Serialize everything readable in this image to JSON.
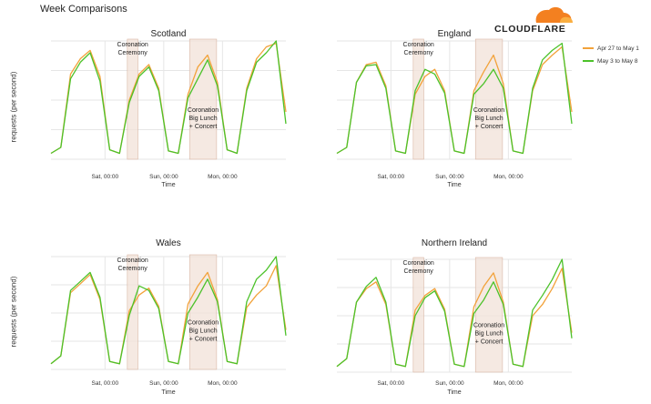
{
  "page": {
    "title": "Week Comparisons",
    "ylabel": "requests (per second)"
  },
  "logo": {
    "text": "CLOUDFLARE"
  },
  "legend": {
    "items": [
      {
        "label": "Apr 27 to May 1",
        "color": "#f2a23a"
      },
      {
        "label": "May 3 to May 8",
        "color": "#4cc22a"
      }
    ]
  },
  "colors": {
    "series1": "#f2a23a",
    "series2": "#4cc22a",
    "band": "#f1e1d8",
    "band_edge": "#d9b7a5",
    "grid": "#e6e6e6"
  },
  "chart_data": [
    {
      "type": "line",
      "title": "Scotland",
      "xlabel": "Time",
      "x_ticks": [
        "Sat, 00:00",
        "Sun, 00:00",
        "Mon, 00:00"
      ],
      "y_range": [
        0,
        1
      ],
      "grid": true,
      "annotations": [
        "Coronation Ceremony",
        "Coronation Big Lunch + Concert"
      ],
      "series": [
        {
          "name": "Apr 27 to May 1",
          "values": [
            0.05,
            0.1,
            0.72,
            0.85,
            0.92,
            0.7,
            0.08,
            0.05,
            0.5,
            0.72,
            0.8,
            0.6,
            0.07,
            0.05,
            0.55,
            0.78,
            0.88,
            0.65,
            0.08,
            0.05,
            0.6,
            0.85,
            0.95,
            0.98,
            0.4
          ]
        },
        {
          "name": "May 3 to May 8",
          "values": [
            0.05,
            0.1,
            0.68,
            0.82,
            0.9,
            0.66,
            0.08,
            0.05,
            0.48,
            0.7,
            0.78,
            0.58,
            0.07,
            0.05,
            0.52,
            0.68,
            0.84,
            0.62,
            0.08,
            0.05,
            0.58,
            0.82,
            0.9,
            1.0,
            0.3
          ]
        }
      ]
    },
    {
      "type": "line",
      "title": "England",
      "xlabel": "Time",
      "x_ticks": [
        "Sat, 00:00",
        "Sun, 00:00",
        "Mon, 00:00"
      ],
      "y_range": [
        0,
        1
      ],
      "grid": true,
      "annotations": [
        "Coronation Ceremony",
        "Coronation Big Lunch + Concert"
      ],
      "series": [
        {
          "name": "Apr 27 to May 1",
          "values": [
            0.05,
            0.1,
            0.65,
            0.8,
            0.82,
            0.62,
            0.07,
            0.05,
            0.55,
            0.7,
            0.76,
            0.58,
            0.07,
            0.05,
            0.58,
            0.74,
            0.88,
            0.64,
            0.07,
            0.05,
            0.58,
            0.8,
            0.88,
            0.95,
            0.4
          ]
        },
        {
          "name": "May 3 to May 8",
          "values": [
            0.05,
            0.1,
            0.65,
            0.79,
            0.8,
            0.6,
            0.07,
            0.05,
            0.58,
            0.76,
            0.72,
            0.56,
            0.07,
            0.05,
            0.55,
            0.64,
            0.76,
            0.6,
            0.07,
            0.05,
            0.6,
            0.84,
            0.92,
            0.98,
            0.3
          ]
        }
      ]
    },
    {
      "type": "line",
      "title": "Wales",
      "xlabel": "Time",
      "x_ticks": [
        "Sat, 00:00",
        "Sun, 00:00",
        "Mon, 00:00"
      ],
      "y_range": [
        0,
        1
      ],
      "grid": true,
      "annotations": [
        "Coronation Ceremony",
        "Coronation Big Lunch + Concert"
      ],
      "series": [
        {
          "name": "Apr 27 to May 1",
          "values": [
            0.05,
            0.12,
            0.68,
            0.76,
            0.84,
            0.62,
            0.07,
            0.05,
            0.52,
            0.66,
            0.72,
            0.56,
            0.07,
            0.05,
            0.58,
            0.74,
            0.86,
            0.62,
            0.07,
            0.05,
            0.55,
            0.66,
            0.74,
            0.92,
            0.35
          ]
        },
        {
          "name": "May 3 to May 8",
          "values": [
            0.05,
            0.12,
            0.7,
            0.78,
            0.86,
            0.64,
            0.07,
            0.05,
            0.48,
            0.74,
            0.7,
            0.54,
            0.07,
            0.05,
            0.5,
            0.64,
            0.8,
            0.6,
            0.07,
            0.05,
            0.6,
            0.8,
            0.88,
            1.0,
            0.3
          ]
        }
      ]
    },
    {
      "type": "line",
      "title": "Northern Ireland",
      "xlabel": "Time",
      "x_ticks": [
        "Sat, 00:00",
        "Sun, 00:00",
        "Mon, 00:00"
      ],
      "y_range": [
        0,
        1
      ],
      "grid": true,
      "annotations": [
        "Coronation Ceremony",
        "Coronation Big Lunch + Concert"
      ],
      "series": [
        {
          "name": "Apr 27 to May 1",
          "values": [
            0.05,
            0.12,
            0.62,
            0.74,
            0.8,
            0.6,
            0.07,
            0.05,
            0.55,
            0.68,
            0.74,
            0.56,
            0.07,
            0.05,
            0.58,
            0.76,
            0.88,
            0.62,
            0.07,
            0.05,
            0.5,
            0.6,
            0.74,
            0.92,
            0.35
          ]
        },
        {
          "name": "May 3 to May 8",
          "values": [
            0.05,
            0.12,
            0.62,
            0.76,
            0.84,
            0.62,
            0.07,
            0.05,
            0.5,
            0.66,
            0.72,
            0.54,
            0.07,
            0.05,
            0.52,
            0.64,
            0.8,
            0.6,
            0.07,
            0.05,
            0.55,
            0.68,
            0.82,
            1.0,
            0.3
          ]
        }
      ]
    }
  ]
}
